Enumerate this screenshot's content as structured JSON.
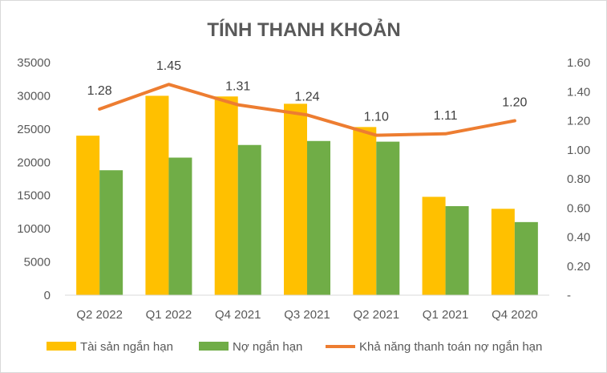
{
  "chart_data": {
    "type": "bar",
    "title": "TÍNH THANH KHOẢN",
    "categories": [
      "Q2 2022",
      "Q1 2022",
      "Q4 2021",
      "Q3 2021",
      "Q2 2021",
      "Q1 2021",
      "Q4 2020"
    ],
    "series": [
      {
        "name": "Tài sản ngắn hạn",
        "type": "bar",
        "axis": "left",
        "color": "#ffc000",
        "values": [
          24000,
          30000,
          29900,
          28800,
          25300,
          14800,
          13000
        ]
      },
      {
        "name": "Nợ ngắn hạn",
        "type": "bar",
        "axis": "left",
        "color": "#70ad47",
        "values": [
          18800,
          20700,
          22600,
          23200,
          23100,
          13400,
          11000
        ]
      },
      {
        "name": "Khả năng thanh toán nợ ngắn hạn",
        "type": "line",
        "axis": "right",
        "color": "#ed7d31",
        "values": [
          1.28,
          1.45,
          1.31,
          1.24,
          1.1,
          1.11,
          1.2
        ],
        "labels": [
          "1.28",
          "1.45",
          "1.31",
          "1.24",
          "1.10",
          "1.11",
          "1.20"
        ]
      }
    ],
    "y_left": {
      "ylim": [
        0,
        35000
      ],
      "ticks": [
        "0",
        "5000",
        "10000",
        "15000",
        "20000",
        "25000",
        "30000",
        "35000"
      ]
    },
    "y_right": {
      "ylim": [
        0,
        1.6
      ],
      "ticks": [
        "-",
        "0.20",
        "0.40",
        "0.60",
        "0.80",
        "1.00",
        "1.20",
        "1.40",
        "1.60"
      ]
    },
    "grid": false,
    "legend": "bottom"
  }
}
